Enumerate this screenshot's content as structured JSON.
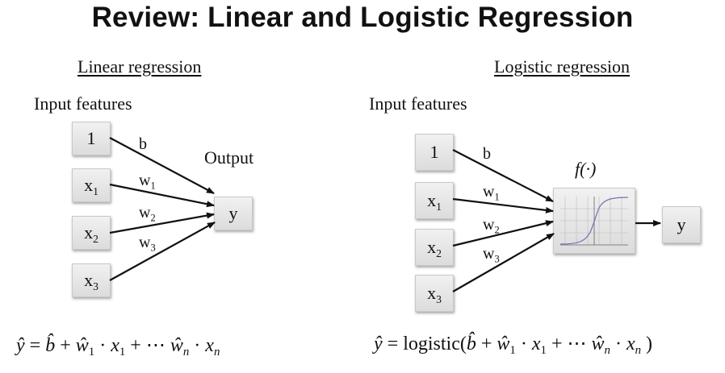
{
  "title": "Review: Linear and Logistic Regression",
  "linear": {
    "heading": "Linear regression",
    "input_label": "Input features",
    "output_label": "Output",
    "nodes": [
      "1",
      "x",
      "x",
      "x"
    ],
    "node_subs": [
      "",
      "1",
      "2",
      "3"
    ],
    "output_node": "y",
    "edge_labels": [
      "b",
      "w",
      "w",
      "w"
    ],
    "edge_subs": [
      "",
      "1",
      "2",
      "3"
    ],
    "formula": {
      "lhs": "ŷ",
      "eq": "=",
      "b": "b̂",
      "plus1": "+",
      "w1": "ŵ",
      "w1_sub": "1",
      "dot1": "·",
      "x1": "x",
      "x1_sub": "1",
      "plus2": "+ ⋯",
      "wn": "ŵ",
      "wn_sub": "n",
      "dot2": "·",
      "xn": "x",
      "xn_sub": "n"
    }
  },
  "logistic": {
    "heading": "Logistic regression",
    "input_label": "Input features",
    "function_label": "f(·)",
    "nodes": [
      "1",
      "x",
      "x",
      "x"
    ],
    "node_subs": [
      "",
      "1",
      "2",
      "3"
    ],
    "output_node": "y",
    "edge_labels": [
      "b",
      "w",
      "w",
      "w"
    ],
    "edge_subs": [
      "",
      "1",
      "2",
      "3"
    ],
    "formula": {
      "lhs": "ŷ",
      "eq": "=",
      "func": "logistic(",
      "b": "b̂",
      "plus1": "+",
      "w1": "ŵ",
      "w1_sub": "1",
      "dot1": "·",
      "x1": "x",
      "x1_sub": "1",
      "plus2": "+ ⋯",
      "wn": "ŵ",
      "wn_sub": "n",
      "dot2": "·",
      "xn": "x",
      "xn_sub": "n",
      "close": ")"
    }
  },
  "colors": {
    "background": "#ffffff",
    "text": "#111111",
    "node_fill": "#e6e6e6",
    "curve": "#7a6fb0"
  }
}
